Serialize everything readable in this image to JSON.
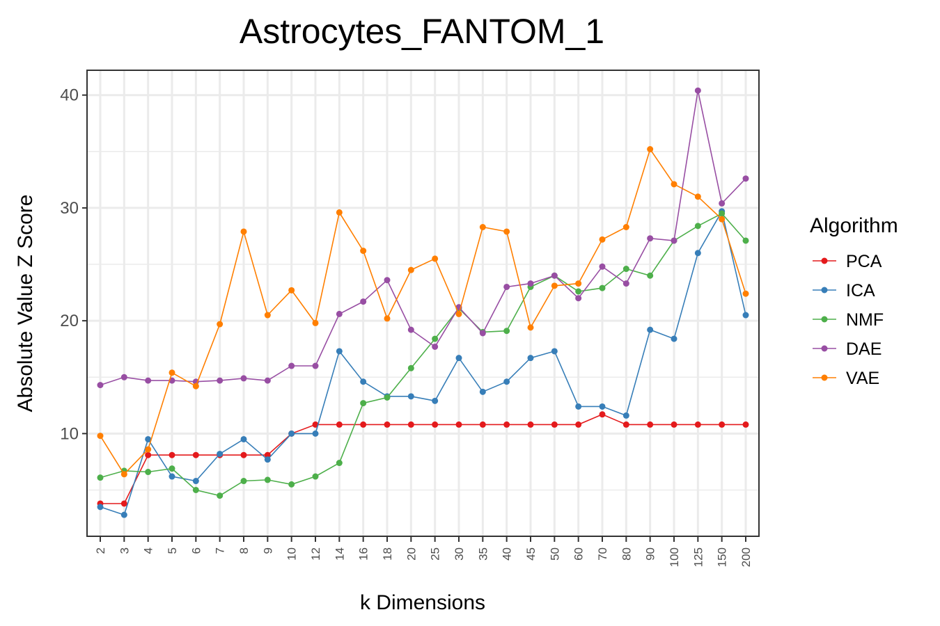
{
  "chart_data": {
    "type": "line",
    "title": "Astrocytes_FANTOM_1",
    "xlabel": "k Dimensions",
    "ylabel": "Absolute Value Z Score",
    "categories": [
      "2",
      "3",
      "4",
      "5",
      "6",
      "7",
      "8",
      "9",
      "10",
      "12",
      "14",
      "16",
      "18",
      "20",
      "25",
      "30",
      "35",
      "40",
      "45",
      "50",
      "60",
      "70",
      "80",
      "90",
      "100",
      "125",
      "150",
      "200"
    ],
    "y_ticks": [
      10,
      20,
      30,
      40
    ],
    "ylim": [
      0.9,
      42.2
    ],
    "grid": true,
    "legend": {
      "title": "Algorithm",
      "position": "right"
    },
    "series": [
      {
        "name": "PCA",
        "color": "#e41a1c",
        "values": [
          3.8,
          3.8,
          8.1,
          8.1,
          8.1,
          8.1,
          8.1,
          8.1,
          10.0,
          10.8,
          10.8,
          10.8,
          10.8,
          10.8,
          10.8,
          10.8,
          10.8,
          10.8,
          10.8,
          10.8,
          10.8,
          11.7,
          10.8,
          10.8,
          10.8,
          10.8,
          10.8,
          10.8
        ]
      },
      {
        "name": "ICA",
        "color": "#377eb8",
        "values": [
          3.5,
          2.8,
          9.5,
          6.2,
          5.8,
          8.2,
          9.5,
          7.7,
          10.0,
          10.0,
          17.3,
          14.6,
          13.3,
          13.3,
          12.9,
          16.7,
          13.7,
          14.6,
          16.7,
          17.3,
          12.4,
          12.4,
          11.6,
          19.2,
          18.4,
          26.0,
          29.7,
          20.5
        ]
      },
      {
        "name": "NMF",
        "color": "#4daf4a",
        "values": [
          6.1,
          6.7,
          6.6,
          6.9,
          5.0,
          4.5,
          5.8,
          5.9,
          5.5,
          6.2,
          7.4,
          12.7,
          13.2,
          15.8,
          18.4,
          21.1,
          19.0,
          19.1,
          23.0,
          24.0,
          22.6,
          22.9,
          24.6,
          24.0,
          27.1,
          28.4,
          29.5,
          27.1
        ]
      },
      {
        "name": "DAE",
        "color": "#984ea3",
        "values": [
          14.3,
          15.0,
          14.7,
          14.7,
          14.6,
          14.7,
          14.9,
          14.7,
          16.0,
          16.0,
          20.6,
          21.7,
          23.6,
          19.2,
          17.7,
          21.2,
          18.9,
          23.0,
          23.3,
          24.0,
          22.0,
          24.8,
          23.3,
          27.3,
          27.1,
          40.4,
          30.4,
          32.6
        ]
      },
      {
        "name": "VAE",
        "color": "#ff7f00",
        "values": [
          9.8,
          6.4,
          8.6,
          15.4,
          14.2,
          19.7,
          27.9,
          20.5,
          22.7,
          19.8,
          29.6,
          26.2,
          20.2,
          24.5,
          25.5,
          20.6,
          28.3,
          27.9,
          19.4,
          23.1,
          23.3,
          27.2,
          28.3,
          35.2,
          32.1,
          31.0,
          29.0,
          22.4
        ]
      }
    ]
  }
}
